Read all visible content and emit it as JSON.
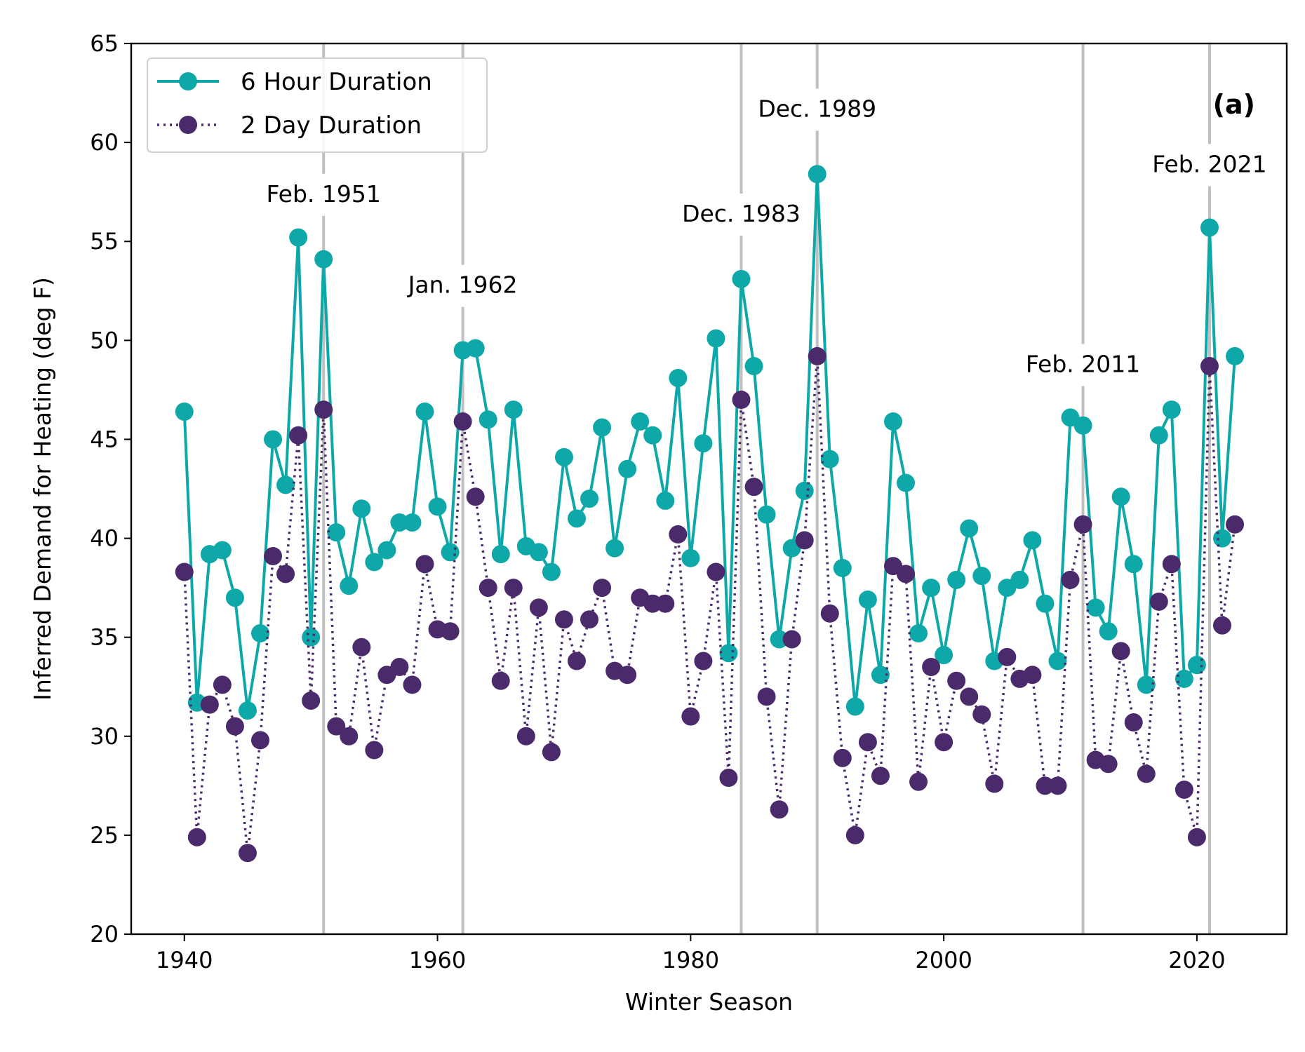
{
  "chart_data": {
    "type": "line",
    "title": "",
    "panel_label": "(a)",
    "xlabel": "Winter Season",
    "ylabel": "Inferred Demand for Heating (deg F)",
    "xlim": [
      1935.8,
      2027.1
    ],
    "ylim": [
      20,
      65
    ],
    "x_ticks": [
      1940,
      1960,
      1980,
      2000,
      2020
    ],
    "x_tick_labels": [
      "1940",
      "1960",
      "1980",
      "2000",
      "2020"
    ],
    "y_ticks": [
      20,
      25,
      30,
      35,
      40,
      45,
      50,
      55,
      60,
      65
    ],
    "y_tick_labels": [
      "20",
      "25",
      "30",
      "35",
      "40",
      "45",
      "50",
      "55",
      "60",
      "65"
    ],
    "grid": false,
    "legend_position": "top-left",
    "colors": {
      "six_hour": "#0fa8a8",
      "two_day": "#4b2a6b",
      "event_line": "#c0c0c0"
    },
    "x": [
      1940,
      1941,
      1942,
      1943,
      1944,
      1945,
      1946,
      1947,
      1948,
      1949,
      1950,
      1951,
      1952,
      1953,
      1954,
      1955,
      1956,
      1957,
      1958,
      1959,
      1960,
      1961,
      1962,
      1963,
      1964,
      1965,
      1966,
      1967,
      1968,
      1969,
      1970,
      1971,
      1972,
      1973,
      1974,
      1975,
      1976,
      1977,
      1978,
      1979,
      1980,
      1981,
      1982,
      1983,
      1984,
      1985,
      1986,
      1987,
      1988,
      1989,
      1990,
      1991,
      1992,
      1993,
      1994,
      1995,
      1996,
      1997,
      1998,
      1999,
      2000,
      2001,
      2002,
      2003,
      2004,
      2005,
      2006,
      2007,
      2008,
      2009,
      2010,
      2011,
      2012,
      2013,
      2014,
      2015,
      2016,
      2017,
      2018,
      2019,
      2020,
      2021,
      2022,
      2023
    ],
    "series": [
      {
        "name": "6 Hour Duration",
        "style": "solid",
        "values": [
          46.4,
          31.7,
          39.2,
          39.4,
          37.0,
          31.3,
          35.2,
          45.0,
          42.7,
          55.2,
          35.0,
          54.1,
          40.3,
          37.6,
          41.5,
          38.8,
          39.4,
          40.8,
          40.8,
          46.4,
          41.6,
          39.3,
          49.5,
          49.6,
          46.0,
          39.2,
          46.5,
          39.6,
          39.3,
          38.3,
          44.1,
          41.0,
          42.0,
          45.6,
          39.5,
          43.5,
          45.9,
          45.2,
          41.9,
          48.1,
          39.0,
          44.8,
          50.1,
          34.2,
          53.1,
          48.7,
          41.2,
          34.9,
          39.5,
          42.4,
          58.4,
          44.0,
          38.5,
          31.5,
          36.9,
          33.1,
          45.9,
          42.8,
          35.2,
          37.5,
          34.1,
          37.9,
          40.5,
          38.1,
          33.8,
          37.5,
          37.9,
          39.9,
          36.7,
          33.8,
          46.1,
          45.7,
          36.5,
          35.3,
          42.1,
          38.7,
          32.6,
          45.2,
          46.5,
          32.9,
          33.6,
          55.7,
          40.0,
          49.2
        ]
      },
      {
        "name": "2 Day Duration",
        "style": "dotted",
        "values": [
          38.3,
          24.9,
          31.6,
          32.6,
          30.5,
          24.1,
          29.8,
          39.1,
          38.2,
          45.2,
          31.8,
          46.5,
          30.5,
          30.0,
          34.5,
          29.3,
          33.1,
          33.5,
          32.6,
          38.7,
          35.4,
          35.3,
          45.9,
          42.1,
          37.5,
          32.8,
          37.5,
          30.0,
          36.5,
          29.2,
          35.9,
          33.8,
          35.9,
          37.5,
          33.3,
          33.1,
          37.0,
          36.7,
          36.7,
          40.2,
          31.0,
          33.8,
          38.3,
          27.9,
          47.0,
          42.6,
          32.0,
          26.3,
          34.9,
          39.9,
          49.2,
          36.2,
          28.9,
          25.0,
          29.7,
          28.0,
          38.6,
          38.2,
          27.7,
          33.5,
          29.7,
          32.8,
          32.0,
          31.1,
          27.6,
          34.0,
          32.9,
          33.1,
          27.5,
          27.5,
          37.9,
          40.7,
          28.8,
          28.6,
          34.3,
          30.7,
          28.1,
          36.8,
          38.7,
          27.3,
          24.9,
          48.7,
          35.6,
          40.7
        ]
      }
    ],
    "events": [
      {
        "label": "Feb. 1951",
        "x": 1951,
        "label_y": 57.0
      },
      {
        "label": "Jan. 1962",
        "x": 1962,
        "label_y": 52.4
      },
      {
        "label": "Dec. 1983",
        "x": 1984,
        "label_y": 56.0
      },
      {
        "label": "Dec. 1989",
        "x": 1990,
        "label_y": 61.3
      },
      {
        "label": "Feb. 2011",
        "x": 2011,
        "label_y": 48.4
      },
      {
        "label": "Feb. 2021",
        "x": 2021,
        "label_y": 58.5
      }
    ]
  }
}
